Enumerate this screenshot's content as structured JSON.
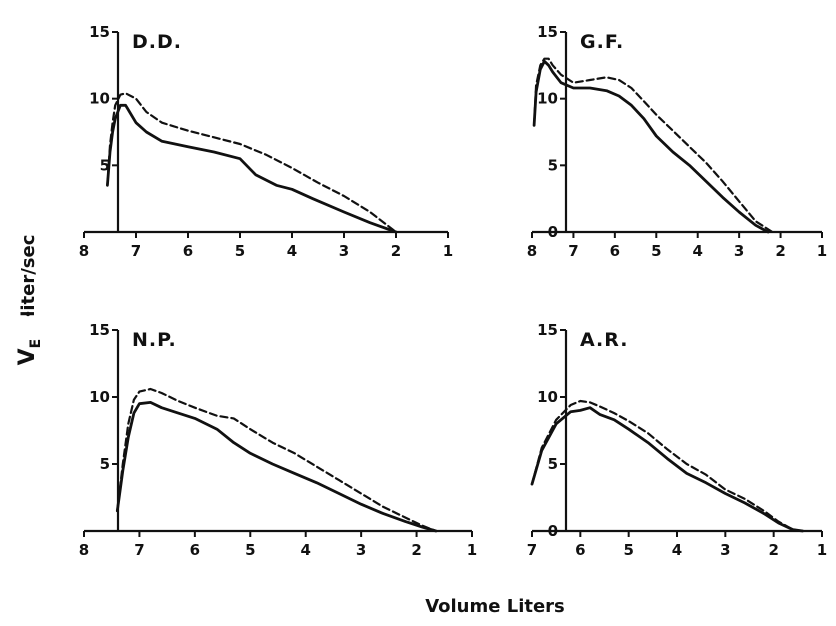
{
  "figure": {
    "y_label": "liter/sec",
    "y_symbol": "V",
    "y_subscript": "E",
    "x_label": "Volume Liters"
  },
  "chart_data": [
    {
      "type": "line",
      "title": "D.D.",
      "xlim": [
        8,
        1
      ],
      "ylim": [
        0,
        15
      ],
      "xticks": [
        8,
        7,
        6,
        5,
        4,
        3,
        2,
        1
      ],
      "yticks": [
        5,
        10,
        15
      ],
      "grid": false,
      "series": [
        {
          "style": "solid",
          "x": [
            7.55,
            7.5,
            7.45,
            7.4,
            7.3,
            7.2,
            7.0,
            6.8,
            6.5,
            6.0,
            5.5,
            5.0,
            4.7,
            4.3,
            4.0,
            3.6,
            3.0,
            2.5,
            2.0
          ],
          "y": [
            3.5,
            6.0,
            7.5,
            8.5,
            9.5,
            9.5,
            8.2,
            7.5,
            6.8,
            6.4,
            6.0,
            5.5,
            4.3,
            3.5,
            3.2,
            2.5,
            1.5,
            0.7,
            0.0
          ]
        },
        {
          "style": "dashed",
          "x": [
            7.55,
            7.5,
            7.45,
            7.4,
            7.3,
            7.2,
            7.0,
            6.8,
            6.5,
            6.0,
            5.5,
            5.0,
            4.5,
            4.0,
            3.5,
            3.0,
            2.5,
            2.0
          ],
          "y": [
            3.5,
            6.5,
            8.2,
            9.5,
            10.3,
            10.4,
            10.0,
            9.0,
            8.2,
            7.6,
            7.1,
            6.6,
            5.8,
            4.8,
            3.7,
            2.7,
            1.5,
            0.0
          ]
        }
      ]
    },
    {
      "type": "line",
      "title": "G.F.",
      "xlim": [
        8,
        1
      ],
      "ylim": [
        0,
        15
      ],
      "xticks": [
        8,
        7,
        6,
        5,
        4,
        3,
        2,
        1
      ],
      "yticks": [
        0,
        5,
        10,
        15
      ],
      "grid": false,
      "series": [
        {
          "style": "solid",
          "x": [
            7.95,
            7.9,
            7.8,
            7.7,
            7.6,
            7.5,
            7.3,
            7.0,
            6.6,
            6.2,
            5.9,
            5.6,
            5.3,
            5.0,
            4.6,
            4.2,
            3.8,
            3.4,
            3.0,
            2.6,
            2.3
          ],
          "y": [
            8.0,
            10.5,
            12.2,
            12.8,
            12.5,
            12.0,
            11.2,
            10.8,
            10.8,
            10.6,
            10.2,
            9.5,
            8.5,
            7.2,
            6.0,
            5.0,
            3.8,
            2.6,
            1.5,
            0.5,
            0.0
          ]
        },
        {
          "style": "dashed",
          "x": [
            7.95,
            7.9,
            7.8,
            7.7,
            7.6,
            7.5,
            7.3,
            7.0,
            6.6,
            6.2,
            5.9,
            5.6,
            5.3,
            5.0,
            4.6,
            4.2,
            3.8,
            3.4,
            3.0,
            2.6,
            2.2
          ],
          "y": [
            8.0,
            11.0,
            12.5,
            13.0,
            13.0,
            12.5,
            11.8,
            11.2,
            11.4,
            11.6,
            11.4,
            10.8,
            9.8,
            8.8,
            7.6,
            6.4,
            5.2,
            3.8,
            2.3,
            0.8,
            0.0
          ]
        }
      ]
    },
    {
      "type": "line",
      "title": "N.P.",
      "xlim": [
        8,
        1
      ],
      "ylim": [
        0,
        15
      ],
      "xticks": [
        8,
        7,
        6,
        5,
        4,
        3,
        2,
        1
      ],
      "yticks": [
        5,
        10,
        15
      ],
      "grid": false,
      "series": [
        {
          "style": "solid",
          "x": [
            7.4,
            7.3,
            7.2,
            7.1,
            7.0,
            6.8,
            6.6,
            6.3,
            6.0,
            5.6,
            5.3,
            5.0,
            4.6,
            4.2,
            3.8,
            3.4,
            3.0,
            2.6,
            2.2,
            1.9,
            1.65
          ],
          "y": [
            1.5,
            4.5,
            7.0,
            8.8,
            9.5,
            9.6,
            9.2,
            8.8,
            8.4,
            7.6,
            6.6,
            5.8,
            5.0,
            4.3,
            3.6,
            2.8,
            2.0,
            1.3,
            0.7,
            0.3,
            0.0
          ]
        },
        {
          "style": "dashed",
          "x": [
            7.4,
            7.3,
            7.2,
            7.1,
            7.0,
            6.8,
            6.6,
            6.3,
            6.0,
            5.6,
            5.3,
            5.0,
            4.6,
            4.2,
            3.8,
            3.4,
            3.0,
            2.6,
            2.2,
            1.9,
            1.65
          ],
          "y": [
            1.5,
            5.0,
            8.0,
            9.8,
            10.4,
            10.6,
            10.3,
            9.7,
            9.2,
            8.6,
            8.4,
            7.6,
            6.6,
            5.8,
            4.8,
            3.8,
            2.8,
            1.8,
            1.0,
            0.4,
            0.0
          ]
        }
      ]
    },
    {
      "type": "line",
      "title": "A.R.",
      "xlim": [
        7,
        1
      ],
      "ylim": [
        0,
        15
      ],
      "xticks": [
        7,
        6,
        5,
        4,
        3,
        2,
        1
      ],
      "yticks": [
        0,
        5,
        10,
        15
      ],
      "grid": false,
      "series": [
        {
          "style": "solid",
          "x": [
            7.0,
            6.8,
            6.5,
            6.2,
            6.0,
            5.8,
            5.6,
            5.3,
            5.0,
            4.6,
            4.2,
            3.8,
            3.4,
            3.0,
            2.6,
            2.2,
            1.9,
            1.6,
            1.4
          ],
          "y": [
            3.5,
            6.0,
            8.0,
            8.9,
            9.0,
            9.2,
            8.7,
            8.3,
            7.6,
            6.6,
            5.4,
            4.3,
            3.6,
            2.8,
            2.1,
            1.3,
            0.6,
            0.1,
            0.0
          ]
        },
        {
          "style": "dashed",
          "x": [
            7.0,
            6.8,
            6.5,
            6.2,
            6.0,
            5.8,
            5.6,
            5.3,
            5.0,
            4.6,
            4.2,
            3.8,
            3.4,
            3.0,
            2.6,
            2.2,
            1.9,
            1.6,
            1.4
          ],
          "y": [
            3.5,
            6.2,
            8.3,
            9.4,
            9.7,
            9.6,
            9.3,
            8.8,
            8.2,
            7.3,
            6.1,
            5.0,
            4.2,
            3.1,
            2.4,
            1.5,
            0.7,
            0.1,
            0.0
          ]
        }
      ]
    }
  ]
}
